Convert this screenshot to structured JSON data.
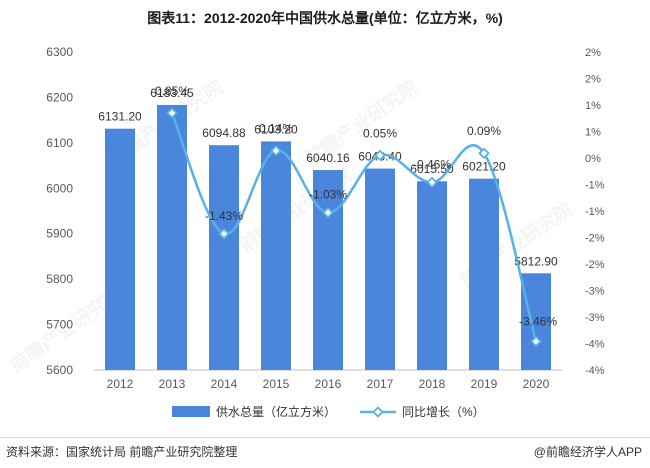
{
  "title": "图表11：2012-2020年中国供水总量(单位：亿立方米，%)",
  "source": "资料来源：国家统计局 前瞻产业研究院整理",
  "brand": "@前瞻经济学人APP",
  "watermark": "前瞻产业研究院",
  "colors": {
    "bar": "#4a86dc",
    "line": "#5ab0e8",
    "label_red": "#c0392b"
  },
  "chart_data": {
    "type": "bar",
    "categories": [
      "2012",
      "2013",
      "2014",
      "2015",
      "2016",
      "2017",
      "2018",
      "2019",
      "2020"
    ],
    "series": [
      {
        "name": "供水总量（亿立方米）",
        "type": "bar",
        "axis": "left",
        "values": [
          6131.2,
          6183.45,
          6094.88,
          6103.2,
          6040.16,
          6043.4,
          6015.5,
          6021.2,
          5812.9
        ],
        "labels": [
          "6131.20",
          "6183.45",
          "6094.88",
          "6103.20",
          "6040.16",
          "6043.40",
          "6015.50",
          "6021.20",
          "5812.90"
        ]
      },
      {
        "name": "同比增长（%）",
        "type": "line",
        "axis": "right",
        "marker": "diamond",
        "values": [
          null,
          0.85,
          -1.43,
          0.14,
          -1.03,
          0.05,
          -0.46,
          0.09,
          -3.46
        ],
        "labels": [
          "",
          "0.85%",
          "-1.43%",
          "0.14%",
          "-1.03%",
          "0.05%",
          "-0.46%",
          "0.09%",
          "-3.46%"
        ]
      }
    ],
    "left_axis": {
      "ylim": [
        5600,
        6300
      ],
      "ticks": [
        5600,
        5700,
        5800,
        5900,
        6000,
        6100,
        6200,
        6300
      ],
      "tick_labels": [
        "5600",
        "5700",
        "5800",
        "5900",
        "6000",
        "6100",
        "6200",
        "6300"
      ]
    },
    "right_axis": {
      "ylim": [
        -4,
        2
      ],
      "ticks": [
        -4,
        -3.5,
        -3,
        -2.5,
        -2,
        -1.5,
        -1,
        -0.5,
        0,
        0.5,
        1,
        1.5,
        2
      ],
      "tick_labels": [
        "-4%",
        "-4%",
        "-3%",
        "-3%",
        "-2%",
        "-2%",
        "-1%",
        "-1%",
        "0%",
        "1%",
        "1%",
        "2%",
        "2%"
      ]
    },
    "legend": {
      "position": "bottom",
      "entries": [
        "供水总量（亿立方米）",
        "同比增长（%）"
      ]
    },
    "grid": false
  }
}
